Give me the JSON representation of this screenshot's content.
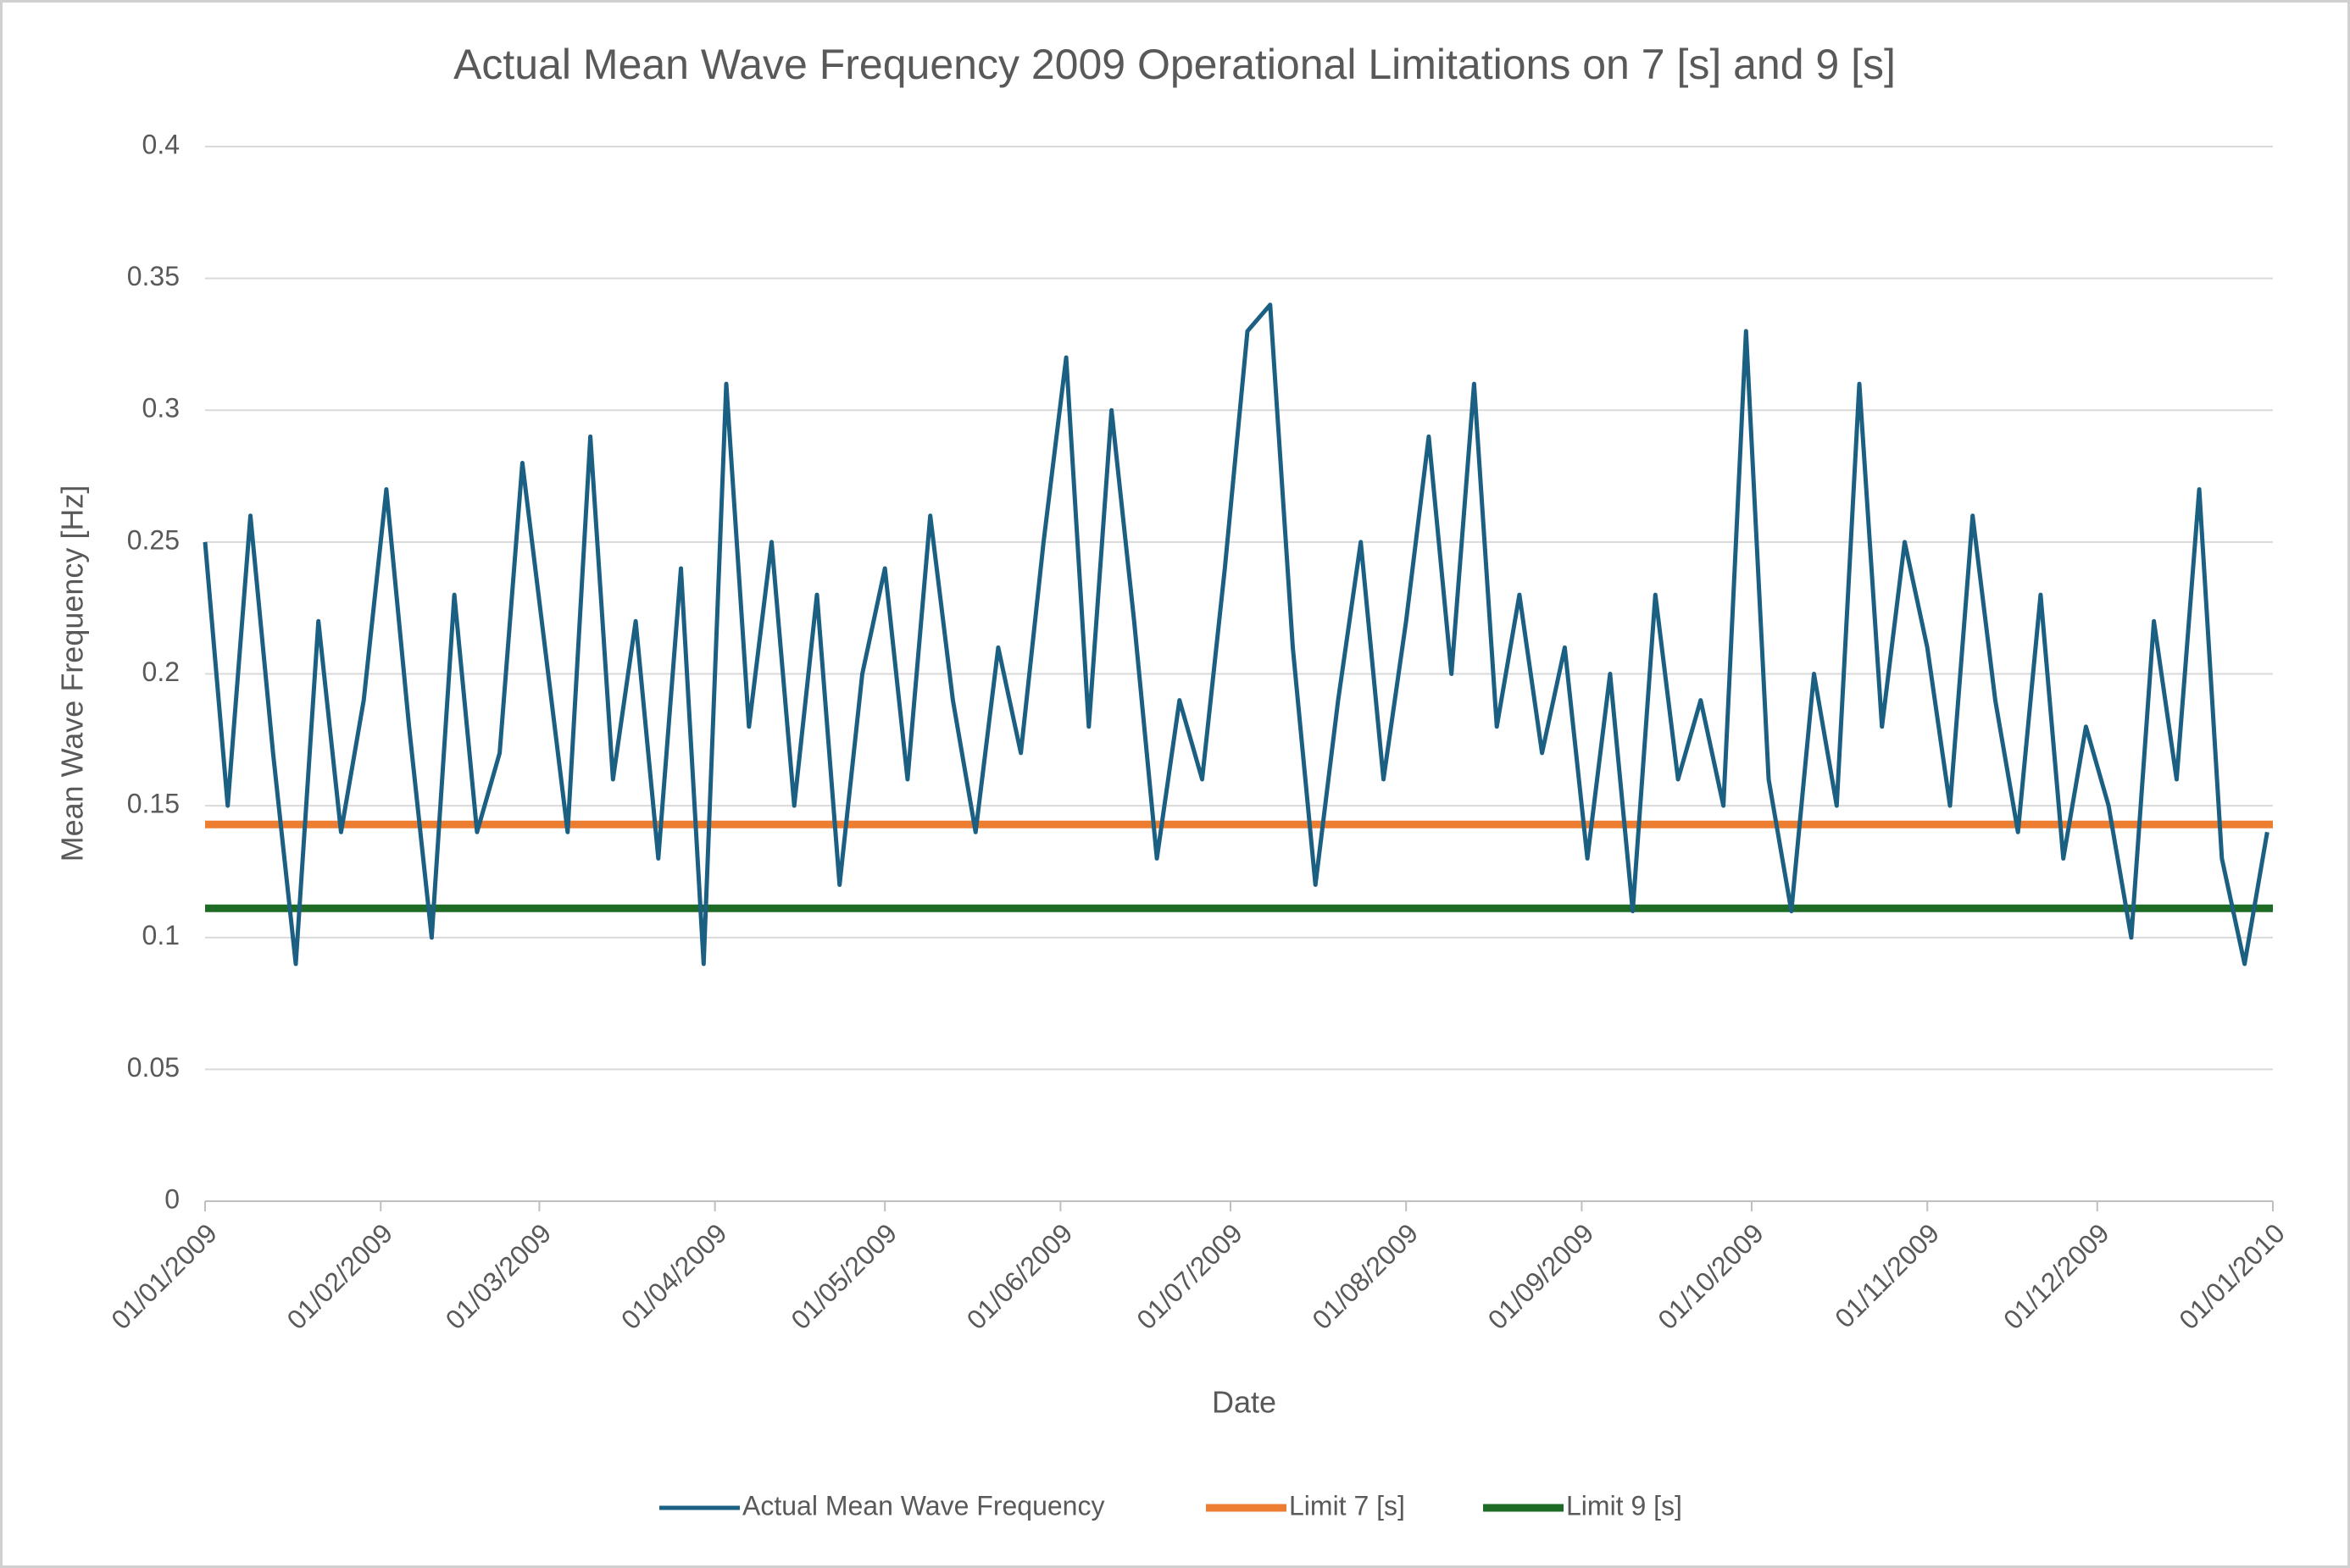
{
  "chart_data": {
    "type": "line",
    "title": "Actual Mean Wave Frequency 2009  Operational Limitations on 7 [s] and 9 [s]",
    "x_label": "Date",
    "y_label": "Mean Wave Frequency [Hz]",
    "xlim": [
      "01/01/2009",
      "01/01/2010"
    ],
    "xticks": [
      "01/01/2009",
      "01/02/2009",
      "01/03/2009",
      "01/04/2009",
      "01/05/2009",
      "01/06/2009",
      "01/07/2009",
      "01/08/2009",
      "01/09/2009",
      "01/10/2009",
      "01/11/2009",
      "01/12/2009",
      "01/01/2010"
    ],
    "ylim": [
      0,
      0.4
    ],
    "yticks": [
      0,
      0.05,
      0.1,
      0.15,
      0.2,
      0.25,
      0.3,
      0.35,
      0.4
    ],
    "grid": true,
    "legend": "bottom",
    "series": [
      {
        "name": "Actual Mean Wave Frequency",
        "color": "#1b5f82",
        "x": [
          "01/01/2009",
          "05/01/2009",
          "09/01/2009",
          "13/01/2009",
          "17/01/2009",
          "21/01/2009",
          "25/01/2009",
          "29/01/2009",
          "02/02/2009",
          "06/02/2009",
          "10/02/2009",
          "14/02/2009",
          "18/02/2009",
          "22/02/2009",
          "26/02/2009",
          "02/03/2009",
          "06/03/2009",
          "10/03/2009",
          "14/03/2009",
          "18/03/2009",
          "22/03/2009",
          "26/03/2009",
          "30/03/2009",
          "03/04/2009",
          "07/04/2009",
          "11/04/2009",
          "15/04/2009",
          "19/04/2009",
          "23/04/2009",
          "27/04/2009",
          "01/05/2009",
          "05/05/2009",
          "09/05/2009",
          "13/05/2009",
          "17/05/2009",
          "21/05/2009",
          "25/05/2009",
          "29/05/2009",
          "02/06/2009",
          "06/06/2009",
          "10/06/2009",
          "14/06/2009",
          "18/06/2009",
          "22/06/2009",
          "26/06/2009",
          "30/06/2009",
          "04/07/2009",
          "08/07/2009",
          "12/07/2009",
          "16/07/2009",
          "20/07/2009",
          "24/07/2009",
          "28/07/2009",
          "01/08/2009",
          "05/08/2009",
          "09/08/2009",
          "13/08/2009",
          "17/08/2009",
          "21/08/2009",
          "25/08/2009",
          "29/08/2009",
          "02/09/2009",
          "06/09/2009",
          "10/09/2009",
          "14/09/2009",
          "18/09/2009",
          "22/09/2009",
          "26/09/2009",
          "30/09/2009",
          "04/10/2009",
          "08/10/2009",
          "12/10/2009",
          "16/10/2009",
          "20/10/2009",
          "24/10/2009",
          "28/10/2009",
          "01/11/2009",
          "05/11/2009",
          "09/11/2009",
          "13/11/2009",
          "17/11/2009",
          "21/11/2009",
          "25/11/2009",
          "29/11/2009",
          "03/12/2009",
          "07/12/2009",
          "11/12/2009",
          "15/12/2009",
          "19/12/2009",
          "23/12/2009",
          "27/12/2009",
          "31/12/2009"
        ],
        "values": [
          0.25,
          0.15,
          0.26,
          0.17,
          0.09,
          0.22,
          0.14,
          0.19,
          0.27,
          0.18,
          0.1,
          0.23,
          0.14,
          0.17,
          0.28,
          0.21,
          0.14,
          0.29,
          0.16,
          0.22,
          0.13,
          0.24,
          0.09,
          0.31,
          0.18,
          0.25,
          0.15,
          0.23,
          0.12,
          0.2,
          0.24,
          0.16,
          0.26,
          0.19,
          0.14,
          0.21,
          0.17,
          0.25,
          0.32,
          0.18,
          0.3,
          0.22,
          0.13,
          0.19,
          0.16,
          0.24,
          0.33,
          0.34,
          0.21,
          0.12,
          0.19,
          0.25,
          0.16,
          0.22,
          0.29,
          0.2,
          0.31,
          0.18,
          0.23,
          0.17,
          0.21,
          0.13,
          0.2,
          0.11,
          0.23,
          0.16,
          0.19,
          0.15,
          0.33,
          0.16,
          0.11,
          0.2,
          0.15,
          0.31,
          0.18,
          0.25,
          0.21,
          0.15,
          0.26,
          0.19,
          0.14,
          0.23,
          0.13,
          0.18,
          0.15,
          0.1,
          0.22,
          0.16,
          0.27,
          0.13,
          0.09,
          0.14
        ]
      },
      {
        "name": "Limit 7 [s]",
        "color": "#ed7d31",
        "x": [
          "01/01/2009",
          "01/01/2010"
        ],
        "values": [
          0.1429,
          0.1429
        ]
      },
      {
        "name": "Limit 9 [s]",
        "color": "#1e6b25",
        "x": [
          "01/01/2009",
          "01/01/2010"
        ],
        "values": [
          0.1111,
          0.1111
        ]
      }
    ]
  }
}
